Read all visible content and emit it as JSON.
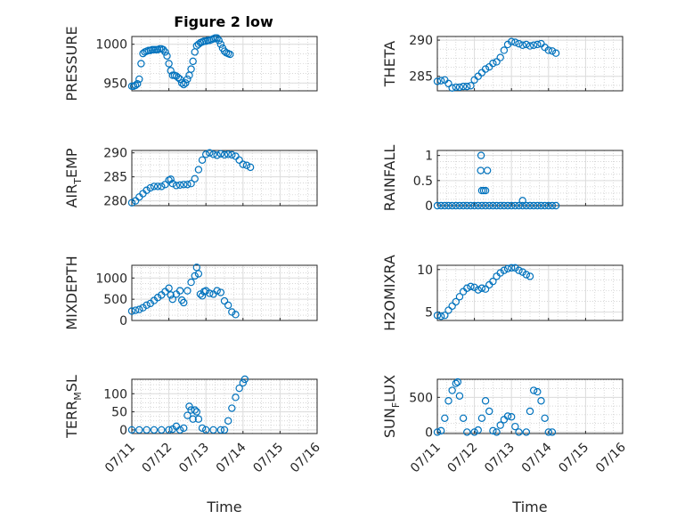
{
  "figure_title": "Figure 2 low",
  "marker_color": "#0072BD",
  "chart_data": [
    {
      "type": "scatter",
      "ylabel": "PRESSURE",
      "title": "Figure 2 low",
      "xlim": [
        11,
        16
      ],
      "ylim": [
        940,
        1010
      ],
      "yticks": [
        950,
        1000
      ],
      "xticks": [],
      "grid": true,
      "marker": "circle",
      "points": [
        [
          11.0,
          946
        ],
        [
          11.05,
          946
        ],
        [
          11.1,
          947
        ],
        [
          11.15,
          949
        ],
        [
          11.2,
          955
        ],
        [
          11.25,
          975
        ],
        [
          11.3,
          988
        ],
        [
          11.35,
          990
        ],
        [
          11.4,
          991
        ],
        [
          11.45,
          992
        ],
        [
          11.5,
          992
        ],
        [
          11.55,
          993
        ],
        [
          11.6,
          993
        ],
        [
          11.65,
          993
        ],
        [
          11.7,
          993
        ],
        [
          11.75,
          994
        ],
        [
          11.8,
          994
        ],
        [
          11.85,
          993
        ],
        [
          11.9,
          990
        ],
        [
          11.95,
          985
        ],
        [
          12.0,
          975
        ],
        [
          12.05,
          966
        ],
        [
          12.1,
          960
        ],
        [
          12.15,
          960
        ],
        [
          12.2,
          959
        ],
        [
          12.25,
          957
        ],
        [
          12.3,
          955
        ],
        [
          12.35,
          950
        ],
        [
          12.4,
          948
        ],
        [
          12.45,
          950
        ],
        [
          12.5,
          955
        ],
        [
          12.55,
          960
        ],
        [
          12.6,
          968
        ],
        [
          12.65,
          978
        ],
        [
          12.7,
          990
        ],
        [
          12.75,
          998
        ],
        [
          12.8,
          1000
        ],
        [
          12.85,
          1002
        ],
        [
          12.9,
          1003
        ],
        [
          12.95,
          1004
        ],
        [
          13.0,
          1004
        ],
        [
          13.05,
          1005
        ],
        [
          13.1,
          1005
        ],
        [
          13.15,
          1006
        ],
        [
          13.2,
          1007
        ],
        [
          13.25,
          1008
        ],
        [
          13.3,
          1008
        ],
        [
          13.35,
          1005
        ],
        [
          13.4,
          1000
        ],
        [
          13.45,
          995
        ],
        [
          13.5,
          991
        ],
        [
          13.55,
          989
        ],
        [
          13.6,
          988
        ],
        [
          13.65,
          987
        ]
      ]
    },
    {
      "type": "scatter",
      "ylabel": "THETA",
      "xlim": [
        11,
        16
      ],
      "ylim": [
        283,
        290.5
      ],
      "yticks": [
        285,
        290
      ],
      "xticks": [],
      "grid": true,
      "marker": "circle",
      "points": [
        [
          11.0,
          284.3
        ],
        [
          11.1,
          284.4
        ],
        [
          11.2,
          284.5
        ],
        [
          11.3,
          284.0
        ],
        [
          11.4,
          283.4
        ],
        [
          11.5,
          283.5
        ],
        [
          11.6,
          283.5
        ],
        [
          11.7,
          283.6
        ],
        [
          11.8,
          283.6
        ],
        [
          11.9,
          283.7
        ],
        [
          12.0,
          284.5
        ],
        [
          12.1,
          285.0
        ],
        [
          12.2,
          285.5
        ],
        [
          12.3,
          286.0
        ],
        [
          12.4,
          286.3
        ],
        [
          12.5,
          286.8
        ],
        [
          12.6,
          287.0
        ],
        [
          12.7,
          287.6
        ],
        [
          12.8,
          288.6
        ],
        [
          12.9,
          289.4
        ],
        [
          13.0,
          289.8
        ],
        [
          13.1,
          289.7
        ],
        [
          13.2,
          289.5
        ],
        [
          13.3,
          289.3
        ],
        [
          13.4,
          289.4
        ],
        [
          13.5,
          289.2
        ],
        [
          13.6,
          289.3
        ],
        [
          13.7,
          289.4
        ],
        [
          13.8,
          289.5
        ],
        [
          13.9,
          289.0
        ],
        [
          14.0,
          288.6
        ],
        [
          14.1,
          288.5
        ],
        [
          14.2,
          288.2
        ]
      ]
    },
    {
      "type": "scatter",
      "ylabel": "AIR_TEMP",
      "xlim": [
        11,
        16
      ],
      "ylim": [
        279,
        290.5
      ],
      "yticks": [
        280,
        285,
        290
      ],
      "xticks": [],
      "grid": true,
      "marker": "circle",
      "points": [
        [
          11.0,
          279.6
        ],
        [
          11.1,
          280.0
        ],
        [
          11.2,
          280.8
        ],
        [
          11.3,
          281.5
        ],
        [
          11.4,
          282.2
        ],
        [
          11.5,
          282.7
        ],
        [
          11.6,
          283.0
        ],
        [
          11.7,
          283.0
        ],
        [
          11.8,
          283.0
        ],
        [
          11.9,
          283.4
        ],
        [
          12.0,
          284.3
        ],
        [
          12.05,
          284.5
        ],
        [
          12.1,
          283.6
        ],
        [
          12.2,
          283.2
        ],
        [
          12.3,
          283.3
        ],
        [
          12.4,
          283.4
        ],
        [
          12.5,
          283.4
        ],
        [
          12.6,
          283.6
        ],
        [
          12.7,
          284.6
        ],
        [
          12.8,
          286.5
        ],
        [
          12.9,
          288.5
        ],
        [
          13.0,
          289.7
        ],
        [
          13.1,
          290.0
        ],
        [
          13.2,
          289.7
        ],
        [
          13.3,
          289.5
        ],
        [
          13.4,
          289.8
        ],
        [
          13.5,
          289.6
        ],
        [
          13.6,
          289.7
        ],
        [
          13.7,
          289.6
        ],
        [
          13.8,
          289.3
        ],
        [
          13.9,
          288.5
        ],
        [
          14.0,
          287.6
        ],
        [
          14.1,
          287.4
        ],
        [
          14.2,
          287.0
        ]
      ]
    },
    {
      "type": "scatter",
      "ylabel": "RAINFALL",
      "xlim": [
        11,
        16
      ],
      "ylim": [
        0,
        1.1
      ],
      "yticks": [
        0,
        0.5,
        1
      ],
      "xticks": [],
      "grid": true,
      "marker": "circle",
      "points": [
        [
          11.0,
          0
        ],
        [
          11.1,
          0
        ],
        [
          11.2,
          0
        ],
        [
          11.3,
          0
        ],
        [
          11.4,
          0
        ],
        [
          11.5,
          0
        ],
        [
          11.6,
          0
        ],
        [
          11.7,
          0
        ],
        [
          11.8,
          0
        ],
        [
          11.9,
          0
        ],
        [
          12.0,
          0
        ],
        [
          12.1,
          0
        ],
        [
          12.2,
          0
        ],
        [
          12.3,
          0
        ],
        [
          12.4,
          0
        ],
        [
          12.5,
          0
        ],
        [
          12.6,
          0
        ],
        [
          12.7,
          0
        ],
        [
          12.8,
          0
        ],
        [
          12.9,
          0
        ],
        [
          13.0,
          0
        ],
        [
          13.1,
          0
        ],
        [
          13.2,
          0
        ],
        [
          13.3,
          0
        ],
        [
          13.4,
          0
        ],
        [
          13.5,
          0
        ],
        [
          13.6,
          0
        ],
        [
          13.7,
          0
        ],
        [
          13.8,
          0
        ],
        [
          13.9,
          0
        ],
        [
          14.0,
          0
        ],
        [
          14.1,
          0
        ],
        [
          14.2,
          0
        ],
        [
          12.18,
          1.0
        ],
        [
          12.17,
          0.7
        ],
        [
          12.2,
          0.3
        ],
        [
          12.25,
          0.3
        ],
        [
          12.3,
          0.3
        ],
        [
          12.35,
          0.7
        ],
        [
          13.3,
          0.1
        ]
      ]
    },
    {
      "type": "scatter",
      "ylabel": "MIXDEPTH",
      "xlim": [
        11,
        16
      ],
      "ylim": [
        0,
        1300
      ],
      "yticks": [
        0,
        500,
        1000
      ],
      "xticks": [],
      "grid": true,
      "marker": "circle",
      "points": [
        [
          11.0,
          220
        ],
        [
          11.1,
          240
        ],
        [
          11.2,
          260
        ],
        [
          11.3,
          300
        ],
        [
          11.4,
          360
        ],
        [
          11.5,
          400
        ],
        [
          11.6,
          470
        ],
        [
          11.7,
          540
        ],
        [
          11.8,
          600
        ],
        [
          11.9,
          680
        ],
        [
          12.0,
          760
        ],
        [
          12.05,
          600
        ],
        [
          12.1,
          500
        ],
        [
          12.2,
          620
        ],
        [
          12.3,
          700
        ],
        [
          12.35,
          480
        ],
        [
          12.4,
          420
        ],
        [
          12.5,
          700
        ],
        [
          12.6,
          900
        ],
        [
          12.7,
          1050
        ],
        [
          12.75,
          1250
        ],
        [
          12.8,
          1100
        ],
        [
          12.85,
          620
        ],
        [
          12.9,
          580
        ],
        [
          12.95,
          680
        ],
        [
          13.0,
          700
        ],
        [
          13.1,
          640
        ],
        [
          13.2,
          620
        ],
        [
          13.3,
          700
        ],
        [
          13.4,
          660
        ],
        [
          13.5,
          460
        ],
        [
          13.6,
          360
        ],
        [
          13.7,
          200
        ],
        [
          13.8,
          140
        ]
      ]
    },
    {
      "type": "scatter",
      "ylabel": "H2OMIXRA",
      "xlim": [
        11,
        16
      ],
      "ylim": [
        4,
        10.5
      ],
      "yticks": [
        5,
        10
      ],
      "xticks": [],
      "grid": true,
      "marker": "circle",
      "points": [
        [
          11.0,
          4.6
        ],
        [
          11.1,
          4.5
        ],
        [
          11.2,
          4.6
        ],
        [
          11.3,
          5.2
        ],
        [
          11.4,
          5.7
        ],
        [
          11.5,
          6.2
        ],
        [
          11.6,
          6.8
        ],
        [
          11.7,
          7.4
        ],
        [
          11.8,
          7.8
        ],
        [
          11.9,
          8.0
        ],
        [
          12.0,
          7.9
        ],
        [
          12.1,
          7.6
        ],
        [
          12.2,
          7.8
        ],
        [
          12.3,
          7.7
        ],
        [
          12.4,
          8.2
        ],
        [
          12.5,
          8.6
        ],
        [
          12.6,
          9.2
        ],
        [
          12.7,
          9.6
        ],
        [
          12.8,
          9.9
        ],
        [
          12.9,
          10.1
        ],
        [
          13.0,
          10.2
        ],
        [
          13.1,
          10.2
        ],
        [
          13.2,
          9.9
        ],
        [
          13.3,
          9.7
        ],
        [
          13.4,
          9.4
        ],
        [
          13.5,
          9.2
        ]
      ]
    },
    {
      "type": "scatter",
      "ylabel": "TERR_MSL",
      "xlim": [
        11,
        16
      ],
      "ylim": [
        -10,
        140
      ],
      "yticks": [
        0,
        50,
        100
      ],
      "xticks": [
        "07/11",
        "07/12",
        "07/13",
        "07/14",
        "07/15",
        "07/16"
      ],
      "xticks_at": [
        11,
        12,
        13,
        14,
        15,
        16
      ],
      "xlabel": "Time",
      "grid": true,
      "marker": "circle",
      "points": [
        [
          11.0,
          0
        ],
        [
          11.2,
          0
        ],
        [
          11.4,
          0
        ],
        [
          11.6,
          0
        ],
        [
          11.8,
          0
        ],
        [
          12.0,
          0
        ],
        [
          12.1,
          2
        ],
        [
          12.2,
          10
        ],
        [
          12.3,
          0
        ],
        [
          12.4,
          5
        ],
        [
          12.5,
          40
        ],
        [
          12.55,
          65
        ],
        [
          12.6,
          55
        ],
        [
          12.65,
          30
        ],
        [
          12.7,
          55
        ],
        [
          12.75,
          50
        ],
        [
          12.8,
          30
        ],
        [
          12.9,
          5
        ],
        [
          13.0,
          0
        ],
        [
          13.2,
          0
        ],
        [
          13.4,
          0
        ],
        [
          13.5,
          0
        ],
        [
          13.6,
          25
        ],
        [
          13.7,
          60
        ],
        [
          13.8,
          90
        ],
        [
          13.9,
          115
        ],
        [
          14.0,
          130
        ],
        [
          14.05,
          140
        ]
      ]
    },
    {
      "type": "scatter",
      "ylabel": "SUN_FLUX",
      "xlim": [
        11,
        16
      ],
      "ylim": [
        -20,
        760
      ],
      "yticks": [
        0,
        500
      ],
      "xticks": [
        "07/11",
        "07/12",
        "07/13",
        "07/14",
        "07/15",
        "07/16"
      ],
      "xticks_at": [
        11,
        12,
        13,
        14,
        15,
        16
      ],
      "xlabel": "Time",
      "grid": true,
      "marker": "circle",
      "points": [
        [
          11.0,
          0
        ],
        [
          11.1,
          20
        ],
        [
          11.2,
          200
        ],
        [
          11.3,
          450
        ],
        [
          11.4,
          600
        ],
        [
          11.5,
          700
        ],
        [
          11.55,
          720
        ],
        [
          11.6,
          520
        ],
        [
          11.7,
          200
        ],
        [
          11.8,
          0
        ],
        [
          12.0,
          0
        ],
        [
          12.1,
          30
        ],
        [
          12.2,
          200
        ],
        [
          12.3,
          450
        ],
        [
          12.4,
          300
        ],
        [
          12.5,
          20
        ],
        [
          12.6,
          0
        ],
        [
          12.7,
          100
        ],
        [
          12.8,
          180
        ],
        [
          12.9,
          230
        ],
        [
          13.0,
          220
        ],
        [
          13.1,
          80
        ],
        [
          13.2,
          0
        ],
        [
          13.4,
          0
        ],
        [
          13.5,
          300
        ],
        [
          13.6,
          600
        ],
        [
          13.7,
          580
        ],
        [
          13.8,
          450
        ],
        [
          13.9,
          200
        ],
        [
          14.0,
          0
        ],
        [
          14.1,
          0
        ]
      ]
    }
  ],
  "ylabels": [
    {
      "main": "PRESSURE"
    },
    {
      "main": "THETA"
    },
    {
      "main": "AIR",
      "sub": "T",
      "rest": "EMP"
    },
    {
      "main": "RAINFALL"
    },
    {
      "main": "MIXDEPTH"
    },
    {
      "main": "H2OMIXRA"
    },
    {
      "main": "TERR",
      "sub": "M",
      "rest": "SL"
    },
    {
      "main": "SUN",
      "sub": "F",
      "rest": "LUX"
    }
  ]
}
